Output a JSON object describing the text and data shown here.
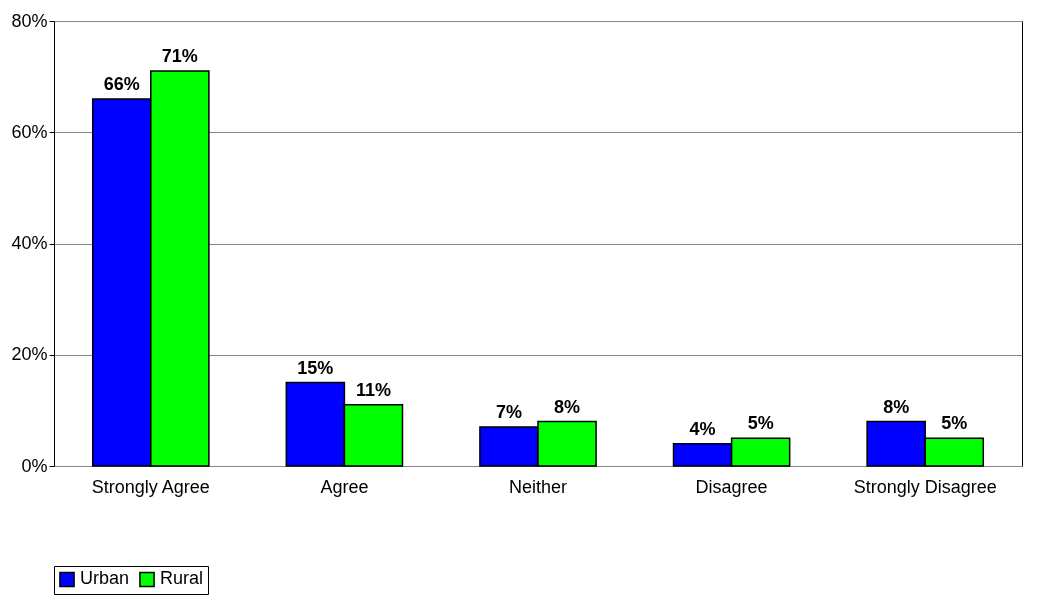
{
  "chart_data": {
    "type": "bar",
    "categories": [
      "Strongly Agree",
      "Agree",
      "Neither",
      "Disagree",
      "Strongly Disagree"
    ],
    "series": [
      {
        "name": "Urban",
        "color": "#0000ff",
        "values": [
          66,
          15,
          7,
          4,
          8
        ],
        "value_labels": [
          "66%",
          "15%",
          "7%",
          "4%",
          "8%"
        ]
      },
      {
        "name": "Rural",
        "color": "#00ff00",
        "values": [
          71,
          11,
          8,
          5,
          5
        ],
        "value_labels": [
          "71%",
          "11%",
          "8%",
          "5%",
          "5%"
        ]
      }
    ],
    "ylim": [
      0,
      80
    ],
    "yticks": [
      {
        "value": 0,
        "label": "0%"
      },
      {
        "value": 20,
        "label": "20%"
      },
      {
        "value": 40,
        "label": "40%"
      },
      {
        "value": 60,
        "label": "60%"
      },
      {
        "value": 80,
        "label": "80%"
      }
    ],
    "grid": "y",
    "legend": "bottom"
  }
}
